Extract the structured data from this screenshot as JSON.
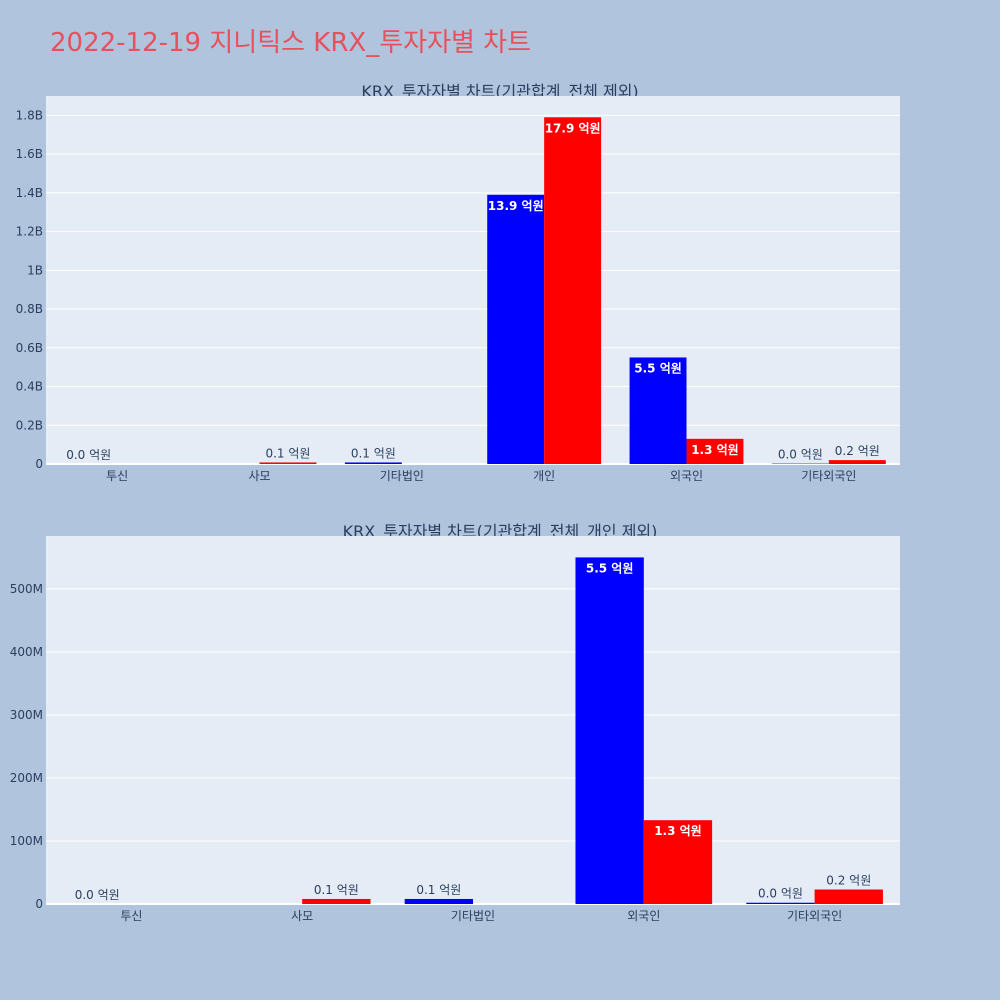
{
  "page": {
    "title": "2022-12-19 지니틱스 KRX_투자자별 차트",
    "title_color": "#e8505b",
    "background": "#b0c4de",
    "plot_background": "#e5ecf6"
  },
  "chart_data": [
    {
      "type": "bar",
      "title": "KRX_투자자별 차트(기관합계_전체 제외)",
      "categories": [
        "투신",
        "사모",
        "기타법인",
        "개인",
        "외국인",
        "기타외국인"
      ],
      "series": [
        {
          "color": "#0000ff",
          "values": [
            0,
            0,
            8000000,
            1390000000,
            550000000,
            2000000
          ],
          "labels": [
            "0.0 억원",
            "",
            "0.1 억원",
            "13.9 억원",
            "5.5 억원",
            "0.0 억원"
          ]
        },
        {
          "color": "#ff0000",
          "values": [
            0,
            8000000,
            0,
            1790000000,
            130000000,
            20000000
          ],
          "labels": [
            "",
            "0.1 억원",
            "",
            "17.9 억원",
            "1.3 억원",
            "0.2 억원"
          ]
        }
      ],
      "ylim": [
        0,
        1900000000
      ],
      "yticks": [
        0,
        200000000,
        400000000,
        600000000,
        800000000,
        1000000000,
        1200000000,
        1400000000,
        1600000000,
        1800000000
      ],
      "ytick_labels": [
        "0",
        "0.2B",
        "0.4B",
        "0.6B",
        "0.8B",
        "1B",
        "1.2B",
        "1.4B",
        "1.6B",
        "1.8B"
      ],
      "grid": true
    },
    {
      "type": "bar",
      "title": "KRX_투자자별 차트(기관합계_전체_개인 제외)",
      "categories": [
        "투신",
        "사모",
        "기타법인",
        "외국인",
        "기타외국인"
      ],
      "series": [
        {
          "color": "#0000ff",
          "values": [
            0,
            0,
            8000000,
            550000000,
            2000000
          ],
          "labels": [
            "0.0 억원",
            "",
            "0.1 억원",
            "5.5 억원",
            "0.0 억원"
          ]
        },
        {
          "color": "#ff0000",
          "values": [
            0,
            8000000,
            0,
            133000000,
            23000000
          ],
          "labels": [
            "",
            "0.1 억원",
            "",
            "1.3 억원",
            "0.2 억원"
          ]
        }
      ],
      "ylim": [
        0,
        584000000
      ],
      "yticks": [
        0,
        100000000,
        200000000,
        300000000,
        400000000,
        500000000
      ],
      "ytick_labels": [
        "0",
        "100M",
        "200M",
        "300M",
        "400M",
        "500M"
      ],
      "grid": true
    }
  ]
}
